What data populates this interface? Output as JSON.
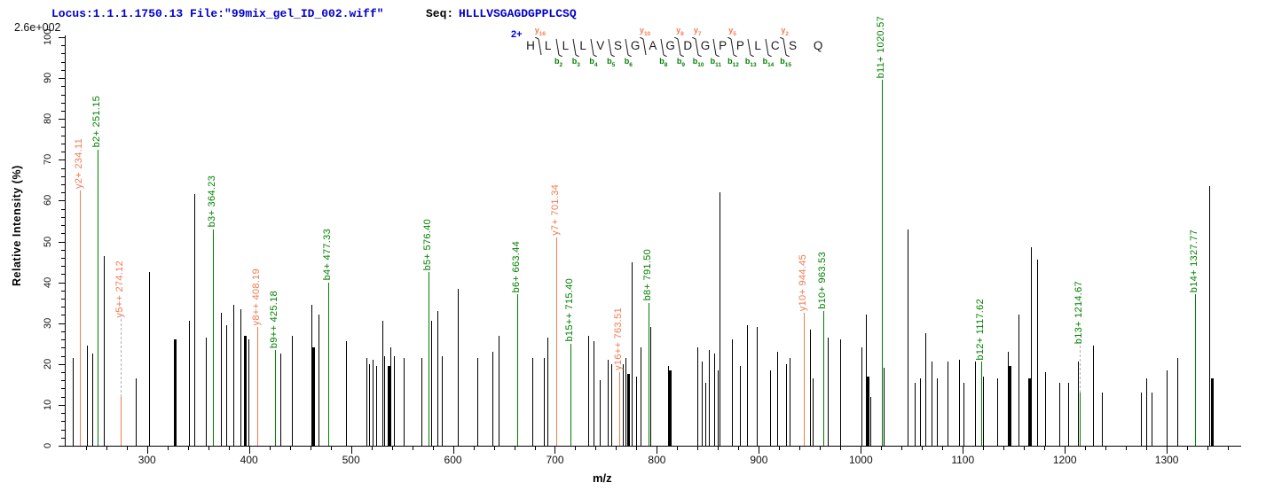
{
  "header": {
    "locus_file": "Locus:1.1.1.1750.13 File:\"99mix_gel_ID_002.wiff\"",
    "seq_label": "Seq:",
    "sequence": "HLLLVSGAGDGPPLCSQ",
    "max_intensity": "2.6e+002"
  },
  "colors": {
    "b_ion": "#008000",
    "y_ion": "#f3794f",
    "header_blue": "#0000cd",
    "peak_black": "#000000",
    "leader_gray": "#b0b0b0"
  },
  "fragment_map": {
    "charge": "2+",
    "residues": [
      "H",
      "L",
      "L",
      "L",
      "V",
      "S",
      "G",
      "A",
      "G",
      "D",
      "G",
      "P",
      "P",
      "L",
      "C",
      "S",
      "Q"
    ],
    "cleavages": [
      {
        "after": 1,
        "y": "16"
      },
      {
        "after": 2,
        "b": "2"
      },
      {
        "after": 3,
        "b": "3"
      },
      {
        "after": 4,
        "b": "4"
      },
      {
        "after": 5,
        "b": "5"
      },
      {
        "after": 6,
        "b": "6"
      },
      {
        "after": 7,
        "y": "10"
      },
      {
        "after": 8,
        "b": "8"
      },
      {
        "after": 9,
        "b": "9",
        "y": "8"
      },
      {
        "after": 10,
        "b": "10",
        "y": "7"
      },
      {
        "after": 11,
        "b": "11"
      },
      {
        "after": 12,
        "b": "12",
        "y": "5"
      },
      {
        "after": 13,
        "b": "13"
      },
      {
        "after": 14,
        "b": "14"
      },
      {
        "after": 15,
        "b": "15",
        "y": "2"
      }
    ]
  },
  "axes": {
    "x": {
      "label": "m/z",
      "major_ticks": [
        300,
        400,
        500,
        600,
        700,
        800,
        900,
        1000,
        1100,
        1200,
        1300
      ],
      "minor_step": 20,
      "minor_start": 240,
      "minor_end": 1360,
      "range": [
        221,
        1365
      ]
    },
    "y": {
      "label": "Relative Intensity (%)",
      "major_ticks": [
        0,
        10,
        20,
        30,
        40,
        50,
        60,
        70,
        80,
        90,
        100
      ],
      "minor_step": 2,
      "range": [
        0,
        100
      ]
    }
  },
  "chart_data": {
    "type": "bar",
    "title": "MS/MS fragment spectrum of HLLLVSGAGDGPPLCSQ (2+)",
    "xlabel": "m/z",
    "ylabel": "Relative Intensity (%)",
    "xlim": [
      221,
      1365
    ],
    "ylim": [
      0,
      100
    ],
    "labeled_peaks": [
      {
        "label": "y2+ 234.11",
        "ion": "y",
        "mz": 234.11,
        "label_pct": 62.5,
        "leader": "solid"
      },
      {
        "label": "b2+ 251.15",
        "ion": "b",
        "mz": 251.15,
        "label_pct": 72.5,
        "leader": "solid"
      },
      {
        "label": "y5++ 274.12",
        "ion": "y",
        "mz": 274.12,
        "label_pct": 31,
        "leader": "dashed",
        "peak_pct": 12
      },
      {
        "label": "b3+ 364.23",
        "ion": "b",
        "mz": 364.23,
        "label_pct": 53,
        "leader": "solid"
      },
      {
        "label": "y8++ 408.19",
        "ion": "y",
        "mz": 408.19,
        "label_pct": 29,
        "leader": "solid"
      },
      {
        "label": "b9++ 425.18",
        "ion": "b",
        "mz": 425.18,
        "label_pct": 23.5,
        "leader": "solid"
      },
      {
        "label": "b4+ 477.33",
        "ion": "b",
        "mz": 477.33,
        "label_pct": 40,
        "leader": "solid"
      },
      {
        "label": "b5+ 576.40",
        "ion": "b",
        "mz": 576.4,
        "label_pct": 42.5,
        "leader": "solid"
      },
      {
        "label": "b6+ 663.44",
        "ion": "b",
        "mz": 663.44,
        "label_pct": 37,
        "leader": "solid"
      },
      {
        "label": "y7+ 701.34",
        "ion": "y",
        "mz": 701.34,
        "label_pct": 51,
        "leader": "solid"
      },
      {
        "label": "b15++ 715.40",
        "ion": "b",
        "mz": 715.4,
        "label_pct": 25,
        "leader": "solid"
      },
      {
        "label": "y16++ 763.51",
        "ion": "y",
        "mz": 763.51,
        "label_pct": 18,
        "leader": "solid"
      },
      {
        "label": "b8+ 791.50",
        "ion": "b",
        "mz": 791.5,
        "label_pct": 35,
        "leader": "solid"
      },
      {
        "label": "y10+ 944.45",
        "ion": "y",
        "mz": 944.45,
        "label_pct": 32.5,
        "leader": "solid"
      },
      {
        "label": "b10+ 963.53",
        "ion": "b",
        "mz": 963.53,
        "label_pct": 33,
        "leader": "solid"
      },
      {
        "label": "b11+ 1020.57",
        "ion": "b",
        "mz": 1020.57,
        "label_pct": 89.5,
        "leader": "solid"
      },
      {
        "label": "b12+ 1117.62",
        "ion": "b",
        "mz": 1117.62,
        "label_pct": 20.5,
        "leader": "solid"
      },
      {
        "label": "b13+ 1214.67",
        "ion": "b",
        "mz": 1214.67,
        "label_pct": 24.5,
        "leader": "dashed",
        "peak_pct": 13
      },
      {
        "label": "b14+ 1327.77",
        "ion": "b",
        "mz": 1327.77,
        "label_pct": 37,
        "leader": "solid"
      }
    ],
    "unlabeled_peaks": [
      [
        227,
        21.5
      ],
      [
        241,
        24.5
      ],
      [
        246.5,
        22.5
      ],
      [
        258,
        46.5
      ],
      [
        289,
        16.5
      ],
      [
        302,
        42.5
      ],
      [
        327.5,
        26,
        2
      ],
      [
        341,
        30.5
      ],
      [
        346,
        61.5
      ],
      [
        357.5,
        26.5
      ],
      [
        372.5,
        32.5
      ],
      [
        377.5,
        29.5
      ],
      [
        385,
        34.5
      ],
      [
        391.5,
        33.5
      ],
      [
        396,
        27,
        2
      ],
      [
        399,
        26
      ],
      [
        430.5,
        22.5
      ],
      [
        442,
        27
      ],
      [
        461.5,
        34.5
      ],
      [
        463,
        24,
        2
      ],
      [
        468,
        32
      ],
      [
        495,
        25.5
      ],
      [
        515,
        21.5
      ],
      [
        518,
        20
      ],
      [
        521,
        21
      ],
      [
        524.5,
        19.5
      ],
      [
        530.5,
        30.5
      ],
      [
        532.5,
        22
      ],
      [
        536.5,
        19.5,
        2
      ],
      [
        538.5,
        24
      ],
      [
        542,
        22
      ],
      [
        552,
        21.5
      ],
      [
        569.5,
        21.5
      ],
      [
        579,
        30.5
      ],
      [
        584.5,
        33
      ],
      [
        589,
        22
      ],
      [
        604.5,
        38.5
      ],
      [
        623.5,
        21.5
      ],
      [
        639,
        23
      ],
      [
        645,
        27
      ],
      [
        678,
        21.5
      ],
      [
        689,
        21.5
      ],
      [
        692.5,
        26.5
      ],
      [
        732.5,
        27
      ],
      [
        738,
        25.5
      ],
      [
        744,
        16
      ],
      [
        751.5,
        21
      ],
      [
        755,
        20
      ],
      [
        766.5,
        20
      ],
      [
        769,
        21.5
      ],
      [
        771.5,
        17.5,
        2
      ],
      [
        775,
        45
      ],
      [
        779.5,
        17
      ],
      [
        784,
        24
      ],
      [
        793.5,
        29
      ],
      [
        811,
        19.5
      ],
      [
        813,
        18.5,
        2
      ],
      [
        840,
        24
      ],
      [
        844,
        20.5
      ],
      [
        847.5,
        15.5
      ],
      [
        851,
        23.5
      ],
      [
        856,
        22.5
      ],
      [
        860,
        18.5
      ],
      [
        861.5,
        62
      ],
      [
        874,
        26
      ],
      [
        881.5,
        19.5
      ],
      [
        888.5,
        29.5
      ],
      [
        898,
        29
      ],
      [
        911,
        18.5
      ],
      [
        918,
        23
      ],
      [
        926.5,
        20
      ],
      [
        930,
        21.5
      ],
      [
        950,
        28.5
      ],
      [
        953,
        16.5
      ],
      [
        967.5,
        26.5
      ],
      [
        979.5,
        26
      ],
      [
        1001,
        24
      ],
      [
        1005,
        32
      ],
      [
        1006.5,
        17,
        2
      ],
      [
        1009,
        12
      ],
      [
        1022.5,
        19
      ],
      [
        1045.5,
        53
      ],
      [
        1052.5,
        15.5
      ],
      [
        1058,
        16.5
      ],
      [
        1063.5,
        27.5
      ],
      [
        1069.5,
        20.5
      ],
      [
        1074.5,
        16.5
      ],
      [
        1085,
        20.5
      ],
      [
        1096,
        21
      ],
      [
        1100.5,
        15.5
      ],
      [
        1112,
        20.5
      ],
      [
        1119.5,
        17
      ],
      [
        1134,
        16.5
      ],
      [
        1144,
        23
      ],
      [
        1146,
        19.5,
        2
      ],
      [
        1154.5,
        32
      ],
      [
        1165,
        16.5,
        2
      ],
      [
        1167,
        48.5
      ],
      [
        1173,
        45.5
      ],
      [
        1181,
        18
      ],
      [
        1194.5,
        15.5
      ],
      [
        1203.5,
        15.5
      ],
      [
        1213,
        20.5
      ],
      [
        1228,
        24.5
      ],
      [
        1236,
        13
      ],
      [
        1275,
        13
      ],
      [
        1280,
        16.5
      ],
      [
        1285.5,
        13
      ],
      [
        1300,
        18.5
      ],
      [
        1310,
        21.5
      ],
      [
        1342,
        63.5
      ],
      [
        1344,
        16.5,
        2
      ]
    ]
  }
}
